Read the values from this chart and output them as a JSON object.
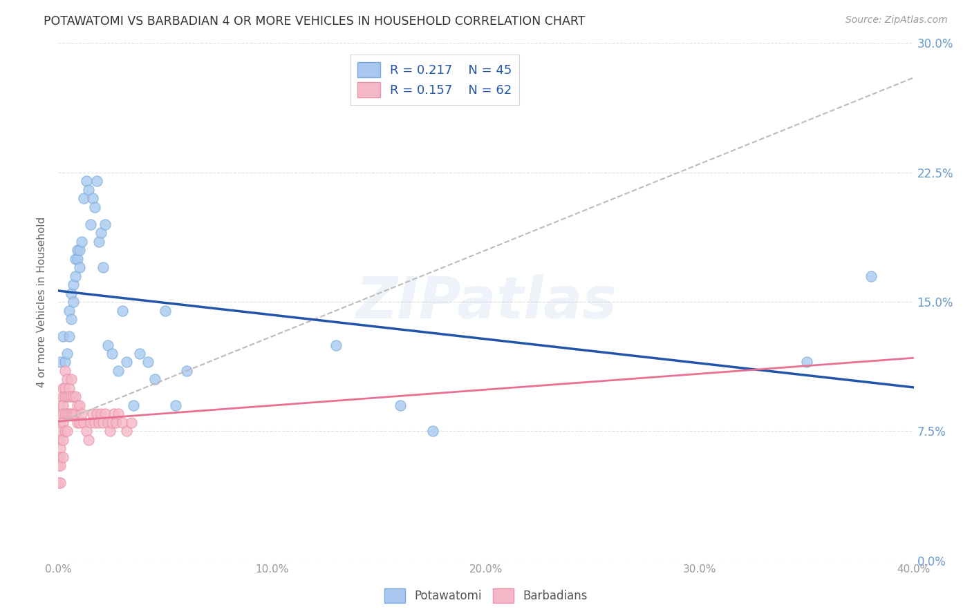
{
  "title": "POTAWATOMI VS BARBADIAN 4 OR MORE VEHICLES IN HOUSEHOLD CORRELATION CHART",
  "source": "Source: ZipAtlas.com",
  "ylabel": "4 or more Vehicles in Household",
  "xlim": [
    0.0,
    0.4
  ],
  "ylim": [
    0.0,
    0.3
  ],
  "watermark": "ZIPatlas",
  "legend_pot_R": "R = 0.217",
  "legend_pot_N": "N = 45",
  "legend_bar_R": "R = 0.157",
  "legend_bar_N": "N = 62",
  "potawatomi_color": "#A8C8F0",
  "potawatomi_edge": "#7AAAD8",
  "barbadian_color": "#F5B8C8",
  "barbadian_edge": "#E890A8",
  "potawatomi_line_color": "#2255AA",
  "barbadian_line_color": "#E87090",
  "dashed_line_color": "#BBBBBB",
  "grid_color": "#DDDDDD",
  "title_color": "#333333",
  "axis_label_color": "#666666",
  "tick_label_color": "#999999",
  "right_tick_color": "#6699CC",
  "background_color": "#FFFFFF",
  "pot_x": [
    0.001,
    0.002,
    0.003,
    0.004,
    0.005,
    0.005,
    0.006,
    0.006,
    0.007,
    0.007,
    0.008,
    0.008,
    0.009,
    0.009,
    0.01,
    0.01,
    0.011,
    0.012,
    0.013,
    0.014,
    0.015,
    0.016,
    0.017,
    0.018,
    0.019,
    0.02,
    0.021,
    0.022,
    0.023,
    0.025,
    0.028,
    0.03,
    0.032,
    0.035,
    0.038,
    0.042,
    0.045,
    0.05,
    0.055,
    0.06,
    0.13,
    0.16,
    0.175,
    0.35,
    0.38
  ],
  "pot_y": [
    0.115,
    0.13,
    0.115,
    0.12,
    0.13,
    0.145,
    0.14,
    0.155,
    0.15,
    0.16,
    0.165,
    0.175,
    0.175,
    0.18,
    0.17,
    0.18,
    0.185,
    0.21,
    0.22,
    0.215,
    0.195,
    0.21,
    0.205,
    0.22,
    0.185,
    0.19,
    0.17,
    0.195,
    0.125,
    0.12,
    0.11,
    0.145,
    0.115,
    0.09,
    0.12,
    0.115,
    0.105,
    0.145,
    0.09,
    0.11,
    0.125,
    0.09,
    0.075,
    0.115,
    0.165
  ],
  "bar_x": [
    0.0,
    0.0,
    0.0,
    0.001,
    0.001,
    0.001,
    0.001,
    0.001,
    0.001,
    0.001,
    0.001,
    0.002,
    0.002,
    0.002,
    0.002,
    0.002,
    0.002,
    0.002,
    0.003,
    0.003,
    0.003,
    0.003,
    0.003,
    0.004,
    0.004,
    0.004,
    0.004,
    0.005,
    0.005,
    0.005,
    0.006,
    0.006,
    0.006,
    0.007,
    0.007,
    0.008,
    0.008,
    0.009,
    0.009,
    0.01,
    0.01,
    0.011,
    0.012,
    0.013,
    0.014,
    0.015,
    0.016,
    0.017,
    0.018,
    0.019,
    0.02,
    0.021,
    0.022,
    0.023,
    0.024,
    0.025,
    0.026,
    0.027,
    0.028,
    0.03,
    0.032,
    0.034
  ],
  "bar_y": [
    0.06,
    0.055,
    0.045,
    0.09,
    0.08,
    0.075,
    0.07,
    0.065,
    0.06,
    0.055,
    0.045,
    0.1,
    0.095,
    0.09,
    0.085,
    0.08,
    0.07,
    0.06,
    0.11,
    0.1,
    0.095,
    0.085,
    0.075,
    0.105,
    0.095,
    0.085,
    0.075,
    0.1,
    0.095,
    0.085,
    0.105,
    0.095,
    0.085,
    0.095,
    0.085,
    0.095,
    0.085,
    0.09,
    0.08,
    0.09,
    0.08,
    0.085,
    0.08,
    0.075,
    0.07,
    0.08,
    0.085,
    0.08,
    0.085,
    0.08,
    0.085,
    0.08,
    0.085,
    0.08,
    0.075,
    0.08,
    0.085,
    0.08,
    0.085,
    0.08,
    0.075,
    0.08
  ]
}
